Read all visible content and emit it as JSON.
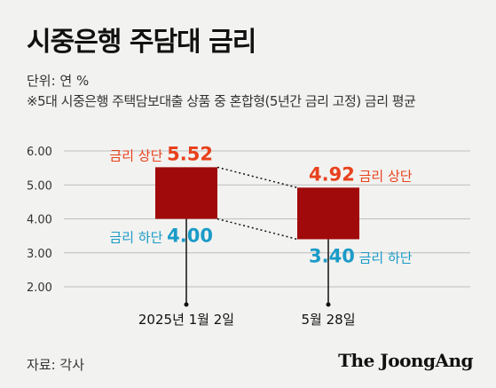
{
  "header": {
    "title": "시중은행 주담대 금리",
    "unit": "단위: 연 %",
    "note": "※5대 시중은행 주택담보대출 상품 중 혼합형(5년간 금리 고정) 금리 평균"
  },
  "footer": {
    "source": "자료: 각사",
    "brand": "The JoongAng"
  },
  "colors": {
    "bar": "#a10a0a",
    "upper_label": "#e8411c",
    "lower_label": "#1a9bc8",
    "grid": "#bdbdbd",
    "text": "#111111"
  },
  "chart_data": {
    "type": "floating-bar",
    "title": "시중은행 주담대 금리",
    "ylim": [
      2.0,
      6.0
    ],
    "yticks": [
      "6.00",
      "5.00",
      "4.00",
      "3.00",
      "2.00"
    ],
    "grid": true,
    "categories": [
      "2025년 1월 2일",
      "5월 28일"
    ],
    "series": [
      {
        "name": "금리 상단",
        "values": [
          5.52,
          4.92
        ],
        "labels": [
          "5.52",
          "4.92"
        ]
      },
      {
        "name": "금리 하단",
        "values": [
          4.0,
          3.4
        ],
        "labels": [
          "4.00",
          "3.40"
        ]
      }
    ]
  }
}
